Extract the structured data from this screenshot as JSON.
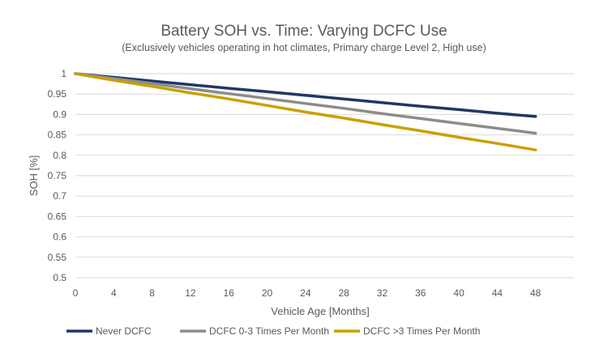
{
  "chart_data": {
    "type": "line",
    "title": "Battery SOH vs. Time: Varying DCFC Use",
    "subtitle": "(Exclusively vehicles operating in hot climates, Primary charge Level 2, High use)",
    "xlabel": "Vehicle Age [Months]",
    "ylabel": "SOH [%]",
    "x": [
      0,
      4,
      8,
      12,
      16,
      20,
      24,
      28,
      32,
      36,
      40,
      44,
      48
    ],
    "xticks": [
      "0",
      "4",
      "8",
      "12",
      "16",
      "20",
      "24",
      "28",
      "32",
      "36",
      "40",
      "44",
      "48"
    ],
    "yticks": [
      "0.5",
      "0.55",
      "0.6",
      "0.65",
      "0.7",
      "0.75",
      "0.8",
      "0.85",
      "0.9",
      "0.95",
      "1"
    ],
    "xlim": [
      0,
      52
    ],
    "ylim": [
      0.5,
      1.0
    ],
    "grid": true,
    "legend_position": "bottom",
    "series": [
      {
        "name": "Never DCFC",
        "color": "#1f3864",
        "values": [
          1.0,
          0.991,
          0.982,
          0.973,
          0.964,
          0.956,
          0.947,
          0.938,
          0.929,
          0.92,
          0.912,
          0.903,
          0.895
        ]
      },
      {
        "name": "DCFC 0-3 Times Per Month",
        "color": "#8c8c8c",
        "values": [
          1.0,
          0.988,
          0.976,
          0.963,
          0.951,
          0.939,
          0.927,
          0.915,
          0.902,
          0.89,
          0.878,
          0.866,
          0.854
        ]
      },
      {
        "name": "DCFC >3 Times Per Month",
        "color": "#c9a000",
        "values": [
          1.0,
          0.984,
          0.969,
          0.953,
          0.938,
          0.922,
          0.906,
          0.891,
          0.875,
          0.86,
          0.844,
          0.829,
          0.813
        ]
      }
    ]
  }
}
